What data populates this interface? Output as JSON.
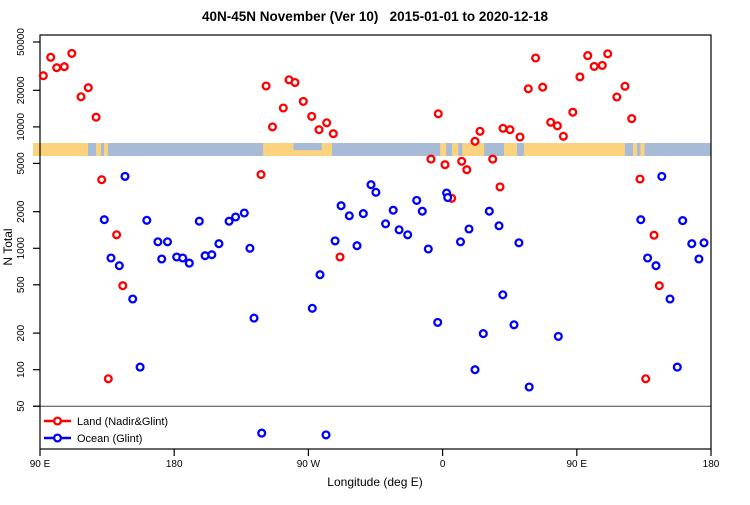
{
  "title": "40N-45N November (Ver 10)   2015-01-01 to 2020-12-18",
  "chart_data": {
    "type": "scatter",
    "title": "40N-45N November (Ver 10)   2015-01-01 to 2020-12-18",
    "xlabel": "Longitude (deg E)",
    "ylabel": "N Total",
    "y_scale": "log",
    "ylim": [
      40,
      60000
    ],
    "grid": false,
    "legend_position": "bottom-left",
    "x_axis_span_deg": 450,
    "x_ticks": [
      {
        "offset_deg": 0,
        "label": "90 E"
      },
      {
        "offset_deg": 90,
        "label": "180"
      },
      {
        "offset_deg": 180,
        "label": "90 W"
      },
      {
        "offset_deg": 270,
        "label": "0"
      },
      {
        "offset_deg": 360,
        "label": "90 E"
      },
      {
        "offset_deg": 450,
        "label": "180"
      }
    ],
    "y_ticks": [
      {
        "n": 50,
        "label": "50"
      },
      {
        "n": 100,
        "label": "100"
      },
      {
        "n": 200,
        "label": "200"
      },
      {
        "n": 500,
        "label": "500"
      },
      {
        "n": 1000,
        "label": "1000"
      },
      {
        "n": 2000,
        "label": "2000"
      },
      {
        "n": 5000,
        "label": "5000"
      },
      {
        "n": 10000,
        "label": "10000"
      },
      {
        "n": 20000,
        "label": "20000"
      },
      {
        "n": 50000,
        "label": "50000"
      }
    ],
    "reference_line_n": 50,
    "map_band": {
      "n_top": 7360,
      "n_bottom": 5750,
      "land_color": "#fbd37f",
      "ocean_color": "#a8bbd6",
      "land_segments_deg": [
        [
          0,
          32.2
        ],
        [
          37.6,
          40.9
        ],
        [
          42.9,
          45.6
        ],
        [
          149.6,
          195.8
        ],
        [
          268.3,
          272.3
        ],
        [
          276.3,
          297.8
        ],
        [
          311.2,
          319.9
        ],
        [
          324.6,
          392.3
        ],
        [
          397.7,
          400.4
        ],
        [
          402.7,
          405.4
        ]
      ],
      "lake_segments_deg": [
        [
          170,
          189
        ]
      ],
      "inland_sea_segments_deg": [
        [
          280.5,
          283.2
        ]
      ]
    },
    "series": [
      {
        "name": "Land (Nadir&Glint)",
        "color": "#ff0000",
        "points_deg_n": [
          [
            7.2,
            37400
          ],
          [
            21.3,
            40300
          ],
          [
            11.2,
            30700
          ],
          [
            16.3,
            31300
          ],
          [
            2.2,
            26400
          ],
          [
            32.4,
            21000
          ],
          [
            27.5,
            17700
          ],
          [
            37.6,
            12000
          ],
          [
            41.4,
            3670
          ],
          [
            51.4,
            1290
          ],
          [
            55.5,
            492
          ],
          [
            45.8,
            84
          ],
          [
            148.2,
            4050
          ],
          [
            151.6,
            21700
          ],
          [
            155.9,
            10000
          ],
          [
            163.2,
            14300
          ],
          [
            167,
            24400
          ],
          [
            171,
            23200
          ],
          [
            176.6,
            16200
          ],
          [
            182.2,
            12200
          ],
          [
            187.1,
            9480
          ],
          [
            192.3,
            10800
          ],
          [
            196.7,
            8780
          ],
          [
            201.2,
            847
          ],
          [
            262.2,
            5430
          ],
          [
            267.1,
            12800
          ],
          [
            271.6,
            4880
          ],
          [
            276.1,
            2580
          ],
          [
            282.8,
            5200
          ],
          [
            286.2,
            4440
          ],
          [
            291.7,
            7600
          ],
          [
            295.1,
            9190
          ],
          [
            303.6,
            5430
          ],
          [
            308.5,
            3200
          ],
          [
            310.5,
            9730
          ],
          [
            315.2,
            9480
          ],
          [
            321.9,
            8250
          ],
          [
            327.5,
            20600
          ],
          [
            332.4,
            36900
          ],
          [
            337.1,
            21200
          ],
          [
            342.5,
            10900
          ],
          [
            347,
            10200
          ],
          [
            351,
            8360
          ],
          [
            357.3,
            13200
          ],
          [
            362.1,
            25800
          ],
          [
            367.3,
            38600
          ],
          [
            371.7,
            31500
          ],
          [
            377.1,
            32100
          ],
          [
            380.7,
            40000
          ],
          [
            386.8,
            17600
          ],
          [
            392.3,
            21600
          ],
          [
            396.8,
            11700
          ],
          [
            402.4,
            3720
          ],
          [
            406.2,
            84
          ],
          [
            411.8,
            1280
          ],
          [
            415.3,
            492
          ]
        ]
      },
      {
        "name": "Ocean (Glint)",
        "color": "#0000ff",
        "points_deg_n": [
          [
            43.1,
            1720
          ],
          [
            47.6,
            832
          ],
          [
            53.2,
            718
          ],
          [
            57,
            3910
          ],
          [
            62.2,
            382
          ],
          [
            67.1,
            105
          ],
          [
            71.6,
            1700
          ],
          [
            79.1,
            1130
          ],
          [
            81.6,
            815
          ],
          [
            85.5,
            1130
          ],
          [
            91.7,
            847
          ],
          [
            95.7,
            832
          ],
          [
            100.1,
            755
          ],
          [
            106.8,
            1670
          ],
          [
            110.7,
            869
          ],
          [
            115.2,
            885
          ],
          [
            120,
            1090
          ],
          [
            126.8,
            1670
          ],
          [
            131.2,
            1810
          ],
          [
            137,
            1950
          ],
          [
            140.8,
            1000
          ],
          [
            143.5,
            266
          ],
          [
            148.7,
            30
          ],
          [
            182.6,
            320
          ],
          [
            187.8,
            605
          ],
          [
            191.8,
            29
          ],
          [
            197.9,
            1150
          ],
          [
            201.9,
            2240
          ],
          [
            207.4,
            1850
          ],
          [
            212.6,
            1050
          ],
          [
            216.8,
            1930
          ],
          [
            222,
            3340
          ],
          [
            225.3,
            2890
          ],
          [
            231.8,
            1590
          ],
          [
            236.9,
            2060
          ],
          [
            240.8,
            1420
          ],
          [
            246.6,
            1290
          ],
          [
            252.6,
            2480
          ],
          [
            256.4,
            2020
          ],
          [
            260.4,
            986
          ],
          [
            266.7,
            245
          ],
          [
            272.7,
            2850
          ],
          [
            273.4,
            2620
          ],
          [
            282,
            1130
          ],
          [
            287.7,
            1440
          ],
          [
            291.7,
            100
          ],
          [
            297.3,
            198
          ],
          [
            301.3,
            2020
          ],
          [
            307.8,
            1530
          ],
          [
            310.4,
            414
          ],
          [
            317.9,
            234
          ],
          [
            321.2,
            1110
          ],
          [
            328.1,
            72
          ],
          [
            347.6,
            188
          ],
          [
            402.9,
            1720
          ],
          [
            407.5,
            832
          ],
          [
            413.1,
            718
          ],
          [
            417,
            3910
          ],
          [
            422.5,
            382
          ],
          [
            427.4,
            105
          ],
          [
            431,
            1690
          ],
          [
            437.1,
            1090
          ],
          [
            441.9,
            815
          ],
          [
            445.3,
            1110
          ]
        ]
      }
    ]
  },
  "legend": {
    "land_label": "Land (Nadir&Glint)",
    "ocean_label": "Ocean (Glint)"
  }
}
